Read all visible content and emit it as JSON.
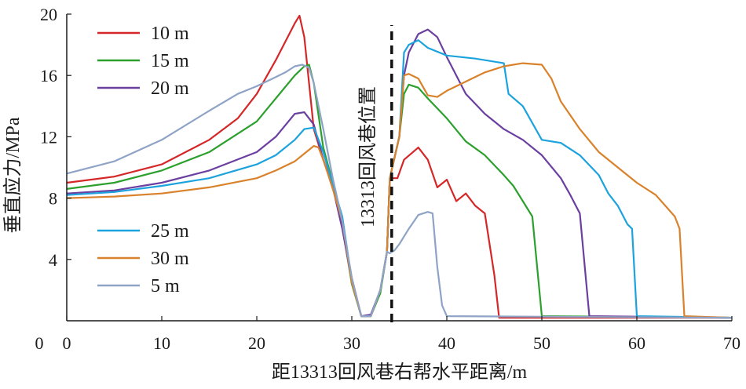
{
  "chart_data": {
    "type": "line",
    "xlabel": "距13313回风巷右帮水平距离/m",
    "ylabel": "垂直应力/MPa",
    "xlim": [
      0,
      70
    ],
    "ylim": [
      0,
      20
    ],
    "xticks": [
      0,
      10,
      20,
      30,
      40,
      50,
      60,
      70
    ],
    "yticks": [
      4,
      8,
      12,
      16,
      20
    ],
    "grid": false,
    "legend_placement": "top-left and middle-left",
    "annotation": {
      "text": "13313回风巷位置",
      "x": 34.2
    },
    "series": [
      {
        "name": "10 m",
        "color": "#d62728",
        "x": [
          0,
          5,
          10,
          15,
          18,
          20,
          22,
          23,
          24,
          24.5,
          25,
          26,
          27,
          28,
          29,
          30,
          31,
          32,
          33,
          33.7,
          34,
          34.8,
          35.5,
          37,
          38,
          39,
          40,
          41,
          42,
          43,
          44,
          45,
          45.5,
          70
        ],
        "y": [
          9.0,
          9.4,
          10.2,
          11.8,
          13.2,
          14.8,
          17.0,
          18.2,
          19.4,
          19.9,
          18.5,
          12.5,
          10.5,
          8.8,
          6.3,
          2.8,
          0.3,
          0.3,
          2.0,
          4.5,
          9.3,
          9.3,
          10.5,
          11.3,
          10.5,
          8.7,
          9.2,
          7.8,
          8.3,
          7.5,
          7.0,
          3.0,
          0.2,
          0.2
        ]
      },
      {
        "name": "15 m",
        "color": "#2ca02c",
        "x": [
          0,
          5,
          10,
          15,
          20,
          22,
          24,
          25,
          25.5,
          26,
          27,
          28,
          29,
          30,
          31,
          32,
          33,
          33.7,
          34,
          35,
          35.5,
          36,
          37,
          38,
          40,
          42,
          44,
          46,
          47,
          48,
          49,
          50,
          70
        ],
        "y": [
          8.6,
          9.0,
          9.8,
          11.0,
          13.0,
          14.5,
          16.0,
          16.6,
          16.7,
          15.5,
          11.3,
          9.0,
          6.2,
          2.4,
          0.3,
          0.3,
          1.8,
          4.5,
          9.3,
          12.0,
          14.8,
          15.4,
          15.2,
          14.5,
          13.2,
          11.7,
          10.8,
          9.5,
          8.8,
          7.8,
          6.8,
          0.3,
          0.2
        ]
      },
      {
        "name": "20 m",
        "color": "#6b3fa0",
        "x": [
          0,
          5,
          10,
          15,
          20,
          22,
          24,
          25,
          26,
          27,
          28,
          29,
          30,
          31,
          32,
          33,
          33.7,
          34,
          35,
          35.5,
          36,
          37,
          38,
          39,
          40,
          42,
          44,
          46,
          48,
          50,
          52,
          53,
          54,
          55,
          70
        ],
        "y": [
          8.3,
          8.5,
          9.0,
          9.8,
          11.0,
          12.0,
          13.5,
          13.6,
          12.8,
          10.5,
          8.7,
          6.0,
          2.6,
          0.3,
          0.4,
          2.0,
          4.5,
          9.3,
          12.0,
          16.0,
          17.5,
          18.7,
          19.0,
          18.5,
          17.2,
          14.8,
          13.5,
          12.5,
          11.8,
          10.8,
          9.3,
          8.2,
          7.0,
          0.3,
          0.2
        ]
      },
      {
        "name": "25 m",
        "color": "#1ca3dd",
        "x": [
          0,
          5,
          10,
          15,
          20,
          22,
          24,
          25,
          26,
          27,
          28,
          29,
          30,
          31,
          32,
          33,
          33.7,
          34,
          35,
          35.5,
          36,
          37,
          38,
          40,
          43,
          46,
          46.5,
          48,
          50,
          52,
          54,
          56,
          57,
          58,
          59,
          59.5,
          60,
          70
        ],
        "y": [
          8.2,
          8.4,
          8.8,
          9.3,
          10.2,
          10.8,
          11.8,
          12.5,
          12.6,
          11.0,
          8.9,
          6.8,
          2.6,
          0.3,
          0.3,
          2.0,
          4.5,
          9.3,
          12.0,
          17.5,
          18.0,
          18.3,
          17.8,
          17.3,
          17.1,
          16.8,
          14.8,
          14.0,
          11.8,
          11.6,
          10.8,
          9.5,
          8.3,
          7.5,
          6.3,
          6.0,
          0.3,
          0.2
        ]
      },
      {
        "name": "30 m",
        "color": "#d9822b",
        "x": [
          0,
          5,
          10,
          15,
          20,
          22,
          24,
          26,
          26.5,
          27,
          28,
          29,
          30,
          31,
          32,
          33,
          33.7,
          34,
          35,
          35.5,
          36,
          37,
          38,
          39,
          40,
          42,
          44,
          46,
          48,
          50,
          51,
          52,
          54,
          56,
          58,
          60,
          62,
          63,
          64,
          64.5,
          65,
          70
        ],
        "y": [
          8.0,
          8.1,
          8.3,
          8.7,
          9.3,
          9.8,
          10.4,
          11.4,
          11.3,
          10.5,
          8.6,
          6.5,
          2.5,
          0.3,
          0.3,
          2.0,
          4.5,
          9.3,
          12.0,
          16.0,
          16.1,
          15.8,
          14.7,
          14.6,
          15.0,
          15.6,
          16.2,
          16.6,
          16.8,
          16.7,
          15.8,
          14.3,
          12.5,
          11.0,
          10.0,
          9.0,
          8.2,
          7.5,
          6.8,
          6.0,
          0.3,
          0.2
        ]
      },
      {
        "name": "5 m",
        "color": "#8ea3c6",
        "x": [
          0,
          5,
          10,
          15,
          18,
          20,
          22,
          23,
          24,
          24.8,
          25.5,
          26,
          27,
          28,
          29,
          30,
          31,
          32,
          33,
          33.7,
          34,
          34.5,
          35,
          36,
          37,
          38,
          38.5,
          39,
          39.5,
          40,
          70
        ],
        "y": [
          9.6,
          10.4,
          11.8,
          13.7,
          14.8,
          15.3,
          15.9,
          16.2,
          16.6,
          16.7,
          16.5,
          15.5,
          12.5,
          9.3,
          6.5,
          2.8,
          0.3,
          0.3,
          2.0,
          4.5,
          4.4,
          4.6,
          5.0,
          6.0,
          6.9,
          7.1,
          7.0,
          3.5,
          1.0,
          0.3,
          0.2
        ]
      }
    ],
    "legend_groups": [
      {
        "placement": "top-left",
        "series": [
          "10 m",
          "15 m",
          "20 m"
        ]
      },
      {
        "placement": "middle-left",
        "series": [
          "25 m",
          "30 m",
          "5 m"
        ]
      }
    ]
  }
}
